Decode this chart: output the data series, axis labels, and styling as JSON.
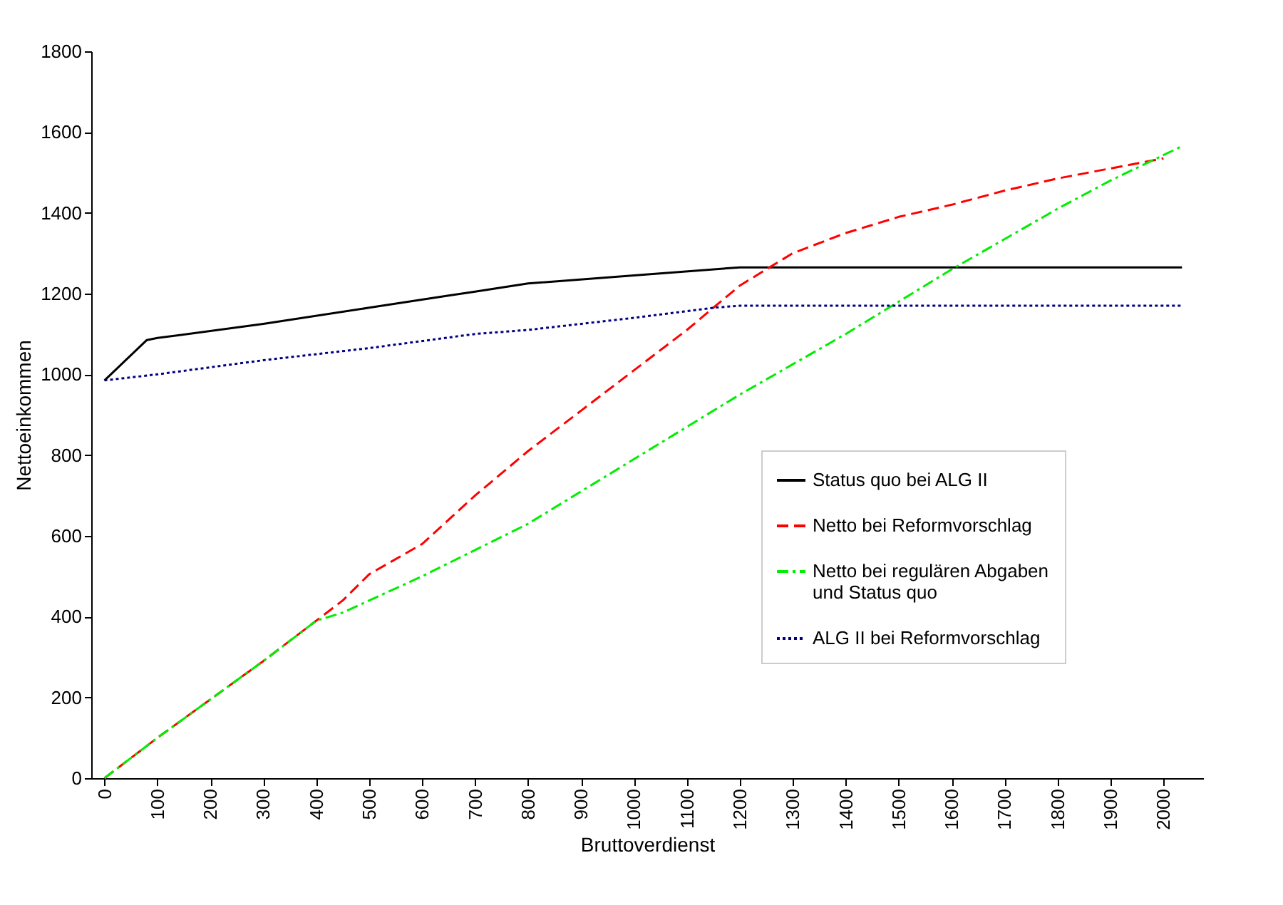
{
  "chart_data": {
    "type": "line",
    "xlabel": "Bruttoverdienst",
    "ylabel": "Nettoeinkommen",
    "xlim": [
      -25,
      2075
    ],
    "xticks": [
      0,
      100,
      200,
      300,
      400,
      500,
      600,
      700,
      800,
      900,
      1000,
      1100,
      1200,
      1300,
      1400,
      1500,
      1600,
      1700,
      1800,
      1900,
      2000
    ],
    "ylim": [
      0,
      1800
    ],
    "yticks": [
      0,
      200,
      400,
      600,
      800,
      1000,
      1200,
      1400,
      1600,
      1800
    ],
    "grid": false,
    "legend": "bottom right",
    "marker": "none",
    "series": [
      {
        "name": "Status quo bei ALG II",
        "color": "#000000",
        "line_style": "solid",
        "x": [
          0,
          80,
          100,
          300,
          500,
          650,
          700,
          800,
          1000,
          1200,
          1300,
          1500,
          1700,
          1900,
          2035
        ],
        "values": [
          985,
          1085,
          1090,
          1125,
          1165,
          1195,
          1205,
          1225,
          1245,
          1265,
          1265,
          1265,
          1265,
          1265,
          1265
        ]
      },
      {
        "name": "Netto bei Reformvorschlag",
        "color": "#ff0000",
        "line_style": "dashed",
        "x": [
          0,
          100,
          200,
          300,
          400,
          450,
          500,
          600,
          700,
          800,
          900,
          1000,
          1100,
          1200,
          1300,
          1400,
          1500,
          1600,
          1700,
          1800,
          1900,
          2000
        ],
        "values": [
          0,
          100,
          195,
          290,
          390,
          440,
          505,
          580,
          700,
          810,
          910,
          1010,
          1110,
          1220,
          1300,
          1350,
          1390,
          1420,
          1455,
          1485,
          1510,
          1535
        ]
      },
      {
        "name": "Netto bei regulären Abgaben\nund  Status quo",
        "color": "#00ee00",
        "line_style": "dashdot",
        "x": [
          0,
          100,
          200,
          300,
          400,
          450,
          500,
          600,
          700,
          800,
          900,
          1000,
          1100,
          1200,
          1300,
          1400,
          1500,
          1600,
          1700,
          1800,
          1900,
          2035
        ],
        "values": [
          0,
          100,
          195,
          290,
          390,
          410,
          440,
          500,
          565,
          630,
          710,
          790,
          870,
          950,
          1025,
          1100,
          1180,
          1260,
          1335,
          1410,
          1480,
          1565
        ]
      },
      {
        "name": "ALG II bei Reformvorschlag",
        "color": "#000080",
        "line_style": "dotted",
        "x": [
          0,
          100,
          300,
          500,
          700,
          800,
          1000,
          1150,
          1200,
          1500,
          1800,
          2035
        ],
        "values": [
          985,
          1000,
          1035,
          1065,
          1100,
          1110,
          1140,
          1165,
          1170,
          1170,
          1170,
          1170
        ]
      }
    ]
  }
}
